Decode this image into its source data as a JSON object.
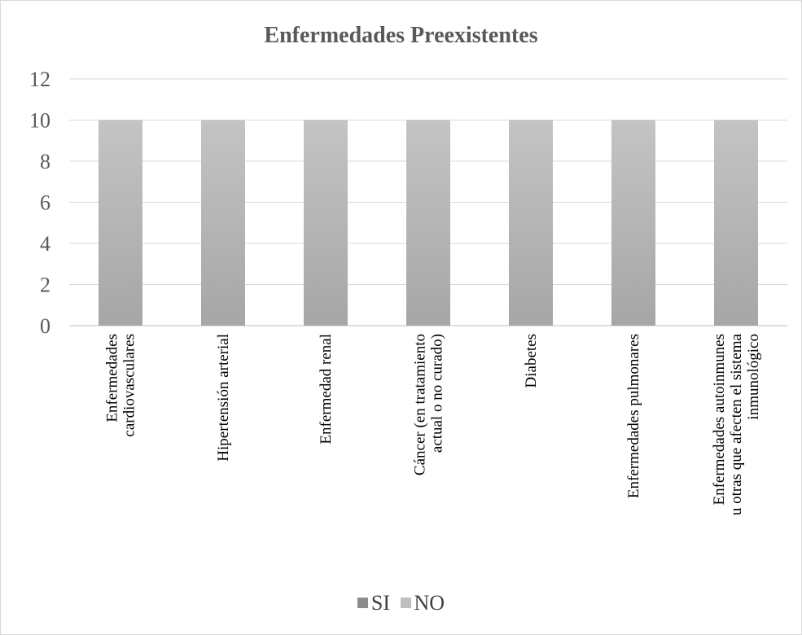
{
  "chart_data": {
    "type": "bar",
    "title": "Enfermedades Preexistentes",
    "categories": [
      [
        "Enfermedades",
        "cardiovasculares"
      ],
      [
        "Hipertensión arterial"
      ],
      [
        "Enfermedad renal"
      ],
      [
        "Cáncer (en tratamiento",
        "actual o no curado)"
      ],
      [
        "Diabetes"
      ],
      [
        "Enfermedades pulmonares"
      ],
      [
        "Enfermedades autoinmunes",
        "u otras que afecten el sistema",
        "inmunológico"
      ]
    ],
    "series": [
      {
        "name": "SI",
        "values": [
          0,
          0,
          0,
          0,
          0,
          0,
          0
        ],
        "color": "#8c8c8c"
      },
      {
        "name": "NO",
        "values": [
          10,
          10,
          10,
          10,
          10,
          10,
          10
        ],
        "color": "#bfbfbf"
      }
    ],
    "stacked": true,
    "ylim": [
      0,
      12
    ],
    "yticks": [
      0,
      2,
      4,
      6,
      8,
      10,
      12
    ],
    "grid": true,
    "legend_position": "bottom"
  }
}
